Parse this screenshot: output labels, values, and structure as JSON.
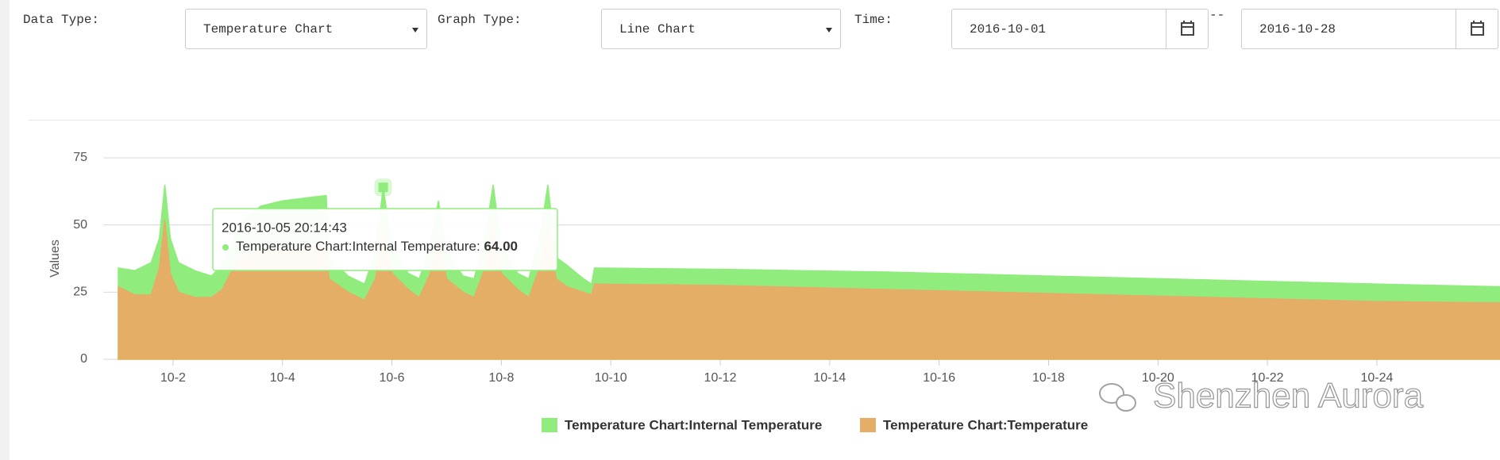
{
  "filters": {
    "data_type_label": "Data Type:",
    "data_type": "Temperature Chart",
    "graph_type_label": "Graph Type:",
    "graph_type": "Line Chart",
    "time_label": "Time:",
    "start_date": "2016-10-01",
    "separator": "--",
    "end_date": "2016-10-28"
  },
  "chart_data": {
    "type": "area",
    "y_label": "Values",
    "x": [
      1.0,
      1.3,
      1.6,
      1.75,
      1.85,
      1.95,
      2.1,
      2.4,
      2.7,
      2.9,
      3.2,
      3.6,
      4.0,
      4.4,
      4.8,
      4.85,
      5.2,
      5.5,
      5.7,
      5.84,
      6.0,
      6.3,
      6.5,
      6.7,
      6.85,
      7.0,
      7.3,
      7.5,
      7.7,
      7.85,
      8.0,
      8.3,
      8.5,
      8.7,
      8.85,
      9.0,
      9.2,
      9.5,
      9.65,
      9.7,
      12,
      15,
      18,
      21,
      24,
      26.25
    ],
    "series": [
      {
        "name": "Temperature Chart:Internal Temperature",
        "color": "#90ed7d",
        "values": [
          34,
          33,
          36,
          45,
          65,
          45,
          36,
          33,
          31,
          35,
          50,
          57,
          59,
          60,
          61,
          38,
          31,
          28,
          40,
          64,
          42,
          32,
          30,
          42,
          59,
          40,
          31,
          30,
          45,
          65,
          42,
          32,
          30,
          45,
          65,
          38,
          35,
          30,
          28,
          34,
          33.5,
          32.5,
          31,
          29.5,
          28,
          27
        ]
      },
      {
        "name": "Temperature Chart:Temperature",
        "color": "#e4ae66",
        "values": [
          27,
          24,
          24,
          34,
          52,
          32,
          25,
          23,
          23,
          26,
          38,
          40,
          41,
          42,
          43,
          30,
          25,
          22,
          30,
          50,
          32,
          26,
          23,
          32,
          46,
          30,
          25,
          23,
          34,
          52,
          32,
          26,
          23,
          34,
          50,
          30,
          27,
          25,
          24,
          28,
          27.5,
          26,
          24.5,
          23,
          21.5,
          21
        ]
      }
    ],
    "xlim": [
      1,
      26.25
    ],
    "xticks": [
      {
        "value": 2,
        "label": "10-2"
      },
      {
        "value": 4,
        "label": "10-4"
      },
      {
        "value": 6,
        "label": "10-6"
      },
      {
        "value": 8,
        "label": "10-8"
      },
      {
        "value": 10,
        "label": "10-10"
      },
      {
        "value": 12,
        "label": "10-12"
      },
      {
        "value": 14,
        "label": "10-14"
      },
      {
        "value": 16,
        "label": "10-16"
      },
      {
        "value": 18,
        "label": "10-18"
      },
      {
        "value": 20,
        "label": "10-20"
      },
      {
        "value": 22,
        "label": "10-22"
      },
      {
        "value": 24,
        "label": "10-24"
      }
    ],
    "ylim": [
      0,
      75
    ],
    "yticks": [
      0,
      25,
      50,
      75
    ],
    "grid": true,
    "tooltip": {
      "time": "2016-10-05 20:14:43",
      "series_label": "Temperature Chart:Internal Temperature:",
      "value_label": "64.00"
    },
    "watermark": "Shenzhen Aurora"
  }
}
